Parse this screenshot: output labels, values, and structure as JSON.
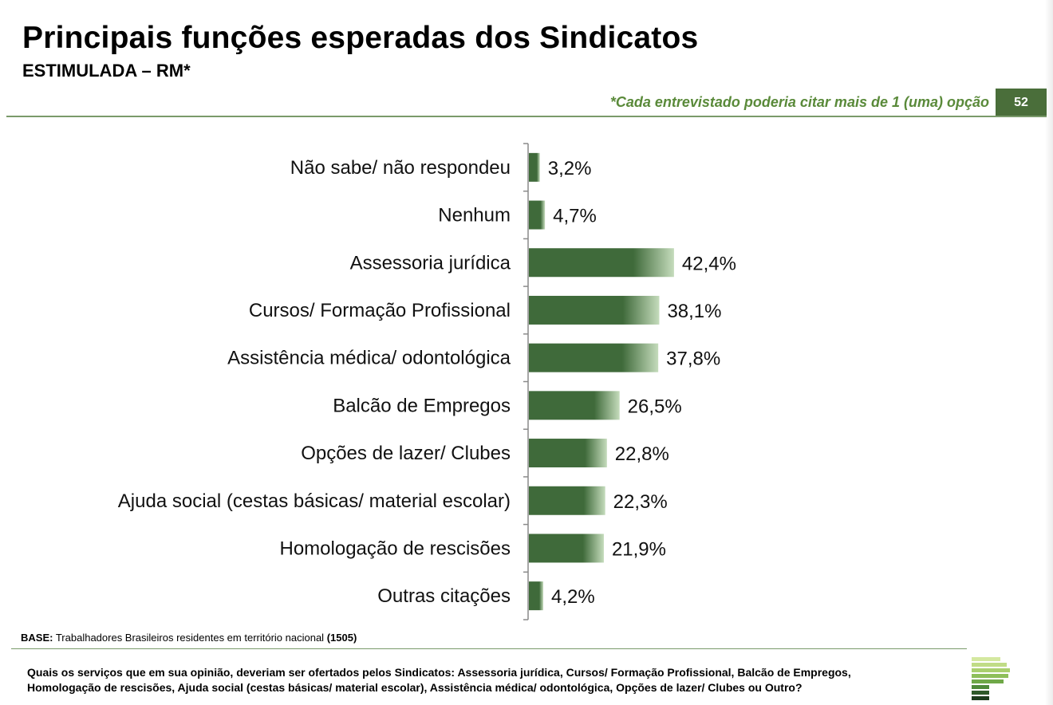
{
  "header": {
    "title": "Principais funções esperadas dos Sindicatos",
    "subtitle": "ESTIMULADA – RM*",
    "note": "*Cada entrevistado poderia citar mais de 1 (uma) opção",
    "page_number": "52"
  },
  "footer": {
    "base_label": "BASE:",
    "base_text": "Trabalhadores Brasileiros residentes em território nacional",
    "base_count": "(1505)",
    "question": "Quais os serviços que em sua opinião, deveriam ser ofertados pelos Sindicatos: Assessoria jurídica, Cursos/ Formação Profissional, Balcão de Empregos, Homologação de rescisões, Ajuda social (cestas básicas/ material escolar), Assistência médica/ odontológica, Opções de lazer/ Clubes ou Outro?"
  },
  "colors": {
    "bar_dark": "#3f6a3a",
    "bar_light": "#c5dcbc",
    "accent": "#5a8a3a"
  },
  "chart_data": {
    "type": "bar",
    "orientation": "horizontal",
    "categories": [
      "Não sabe/ não respondeu",
      "Nenhum",
      "Assessoria jurídica",
      "Cursos/ Formação Profissional",
      "Assistência médica/ odontológica",
      "Balcão de Empregos",
      "Opções de lazer/ Clubes",
      "Ajuda social (cestas básicas/ material escolar)",
      "Homologação de rescisões",
      "Outras citações"
    ],
    "values": [
      3.2,
      4.7,
      42.4,
      38.1,
      37.8,
      26.5,
      22.8,
      22.3,
      21.9,
      4.2
    ],
    "value_labels": [
      "3,2%",
      "4,7%",
      "42,4%",
      "38,1%",
      "37,8%",
      "26,5%",
      "22,8%",
      "22,3%",
      "21,9%",
      "4,2%"
    ],
    "xlim": [
      0,
      100
    ],
    "grid": false,
    "legend": "none"
  }
}
